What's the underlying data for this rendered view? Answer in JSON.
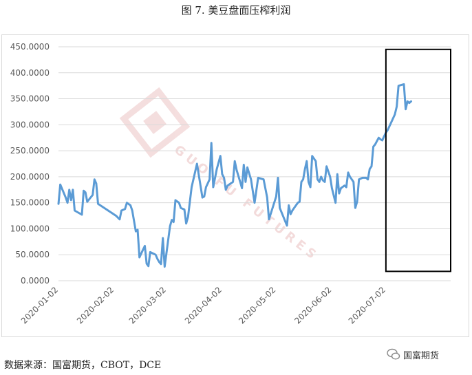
{
  "title": "图 7.  美豆盘面压榨利润",
  "source": "数据来源：国富期货，CBOT，DCE",
  "brand": "国富期货",
  "watermark": "GUO FU FUTURES",
  "colors": {
    "line": "#5b9bd5",
    "grid": "#d9d9d9",
    "highlight_box": "#000000",
    "watermark": "#e8b8b8"
  },
  "chart_data": {
    "type": "line",
    "title": "",
    "xlabel": "",
    "ylabel": "",
    "ylim": [
      0,
      450
    ],
    "yticks": [
      "0.0000",
      "50.0000",
      "100.0000",
      "150.0000",
      "200.0000",
      "250.0000",
      "300.0000",
      "350.0000",
      "400.0000",
      "450.0000"
    ],
    "xticks": [
      "2020-01-02",
      "2020-02-02",
      "2020-03-02",
      "2020-04-02",
      "2020-05-02",
      "2020-06-02",
      "2020-07-02"
    ],
    "xlim": [
      "2020-01-02",
      "2020-08-07"
    ],
    "grid": true,
    "highlight_box": {
      "x_start": "2020-07-02",
      "x_end": "2020-08-07",
      "y_start": 18,
      "y_end": 445
    },
    "series": [
      {
        "name": "",
        "points": [
          [
            "2020-01-02",
            148
          ],
          [
            "2020-01-03",
            185
          ],
          [
            "2020-01-06",
            160
          ],
          [
            "2020-01-07",
            150
          ],
          [
            "2020-01-08",
            175
          ],
          [
            "2020-01-09",
            155
          ],
          [
            "2020-01-10",
            175
          ],
          [
            "2020-01-11",
            135
          ],
          [
            "2020-01-15",
            127
          ],
          [
            "2020-01-16",
            173
          ],
          [
            "2020-01-17",
            170
          ],
          [
            "2020-01-18",
            152
          ],
          [
            "2020-01-21",
            165
          ],
          [
            "2020-01-22",
            195
          ],
          [
            "2020-01-23",
            187
          ],
          [
            "2020-01-24",
            148
          ],
          [
            "2020-02-03",
            125
          ],
          [
            "2020-02-05",
            118
          ],
          [
            "2020-02-06",
            135
          ],
          [
            "2020-02-08",
            138
          ],
          [
            "2020-02-09",
            150
          ],
          [
            "2020-02-11",
            145
          ],
          [
            "2020-02-12",
            135
          ],
          [
            "2020-02-14",
            95
          ],
          [
            "2020-02-15",
            98
          ],
          [
            "2020-02-16",
            45
          ],
          [
            "2020-02-18",
            60
          ],
          [
            "2020-02-19",
            67
          ],
          [
            "2020-02-20",
            33
          ],
          [
            "2020-02-21",
            28
          ],
          [
            "2020-02-22",
            55
          ],
          [
            "2020-02-25",
            50
          ],
          [
            "2020-02-26",
            42
          ],
          [
            "2020-02-27",
            36
          ],
          [
            "2020-02-28",
            32
          ],
          [
            "2020-02-29",
            82
          ],
          [
            "2020-03-01",
            27
          ],
          [
            "2020-03-02",
            53
          ],
          [
            "2020-03-04",
            105
          ],
          [
            "2020-03-05",
            117
          ],
          [
            "2020-03-06",
            113
          ],
          [
            "2020-03-07",
            155
          ],
          [
            "2020-03-09",
            150
          ],
          [
            "2020-03-10",
            140
          ],
          [
            "2020-03-12",
            137
          ],
          [
            "2020-03-13",
            110
          ],
          [
            "2020-03-14",
            123
          ],
          [
            "2020-03-16",
            180
          ],
          [
            "2020-03-19",
            225
          ],
          [
            "2020-03-22",
            160
          ],
          [
            "2020-03-23",
            162
          ],
          [
            "2020-03-24",
            180
          ],
          [
            "2020-03-26",
            195
          ],
          [
            "2020-03-27",
            265
          ],
          [
            "2020-03-28",
            180
          ],
          [
            "2020-03-30",
            215
          ],
          [
            "2020-04-01",
            240
          ],
          [
            "2020-04-02",
            205
          ],
          [
            "2020-04-03",
            198
          ],
          [
            "2020-04-04",
            175
          ],
          [
            "2020-04-05",
            183
          ],
          [
            "2020-04-08",
            190
          ],
          [
            "2020-04-09",
            230
          ],
          [
            "2020-04-10",
            213
          ],
          [
            "2020-04-12",
            190
          ],
          [
            "2020-04-13",
            178
          ],
          [
            "2020-04-14",
            223
          ],
          [
            "2020-04-15",
            190
          ],
          [
            "2020-04-16",
            218
          ],
          [
            "2020-04-18",
            195
          ],
          [
            "2020-04-20",
            150
          ],
          [
            "2020-04-22",
            198
          ],
          [
            "2020-04-25",
            195
          ],
          [
            "2020-04-27",
            160
          ],
          [
            "2020-04-28",
            118
          ],
          [
            "2020-05-02",
            162
          ],
          [
            "2020-05-03",
            198
          ],
          [
            "2020-05-04",
            140
          ],
          [
            "2020-05-08",
            106
          ],
          [
            "2020-05-09",
            145
          ],
          [
            "2020-05-10",
            128
          ],
          [
            "2020-05-11",
            135
          ],
          [
            "2020-05-12",
            140
          ],
          [
            "2020-05-14",
            150
          ],
          [
            "2020-05-15",
            152
          ],
          [
            "2020-05-16",
            190
          ],
          [
            "2020-05-17",
            195
          ],
          [
            "2020-05-18",
            215
          ],
          [
            "2020-05-19",
            230
          ],
          [
            "2020-05-20",
            190
          ],
          [
            "2020-05-21",
            180
          ],
          [
            "2020-05-22",
            240
          ],
          [
            "2020-05-24",
            230
          ],
          [
            "2020-05-25",
            195
          ],
          [
            "2020-05-26",
            190
          ],
          [
            "2020-05-27",
            200
          ],
          [
            "2020-05-28",
            193
          ],
          [
            "2020-05-29",
            190
          ],
          [
            "2020-05-30",
            220
          ],
          [
            "2020-06-01",
            200
          ],
          [
            "2020-06-02",
            178
          ],
          [
            "2020-06-04",
            150
          ],
          [
            "2020-06-05",
            205
          ],
          [
            "2020-06-06",
            168
          ],
          [
            "2020-06-07",
            178
          ],
          [
            "2020-06-09",
            183
          ],
          [
            "2020-06-10",
            180
          ],
          [
            "2020-06-11",
            208
          ],
          [
            "2020-06-12",
            200
          ],
          [
            "2020-06-14",
            190
          ],
          [
            "2020-06-15",
            140
          ],
          [
            "2020-06-16",
            152
          ],
          [
            "2020-06-17",
            195
          ],
          [
            "2020-06-19",
            198
          ],
          [
            "2020-06-21",
            198
          ],
          [
            "2020-06-22",
            195
          ],
          [
            "2020-06-23",
            215
          ],
          [
            "2020-06-24",
            220
          ],
          [
            "2020-06-25",
            258
          ],
          [
            "2020-06-26",
            262
          ],
          [
            "2020-06-28",
            275
          ],
          [
            "2020-06-29",
            272
          ],
          [
            "2020-06-30",
            270
          ],
          [
            "2020-07-01",
            278
          ],
          [
            "2020-07-02",
            285
          ],
          [
            "2020-07-03",
            290
          ],
          [
            "2020-07-05",
            305
          ],
          [
            "2020-07-07",
            320
          ],
          [
            "2020-07-08",
            335
          ],
          [
            "2020-07-09",
            375
          ],
          [
            "2020-07-10",
            376
          ],
          [
            "2020-07-12",
            378
          ],
          [
            "2020-07-13",
            330
          ],
          [
            "2020-07-14",
            345
          ],
          [
            "2020-07-15",
            342
          ],
          [
            "2020-07-16",
            345
          ]
        ]
      }
    ]
  }
}
